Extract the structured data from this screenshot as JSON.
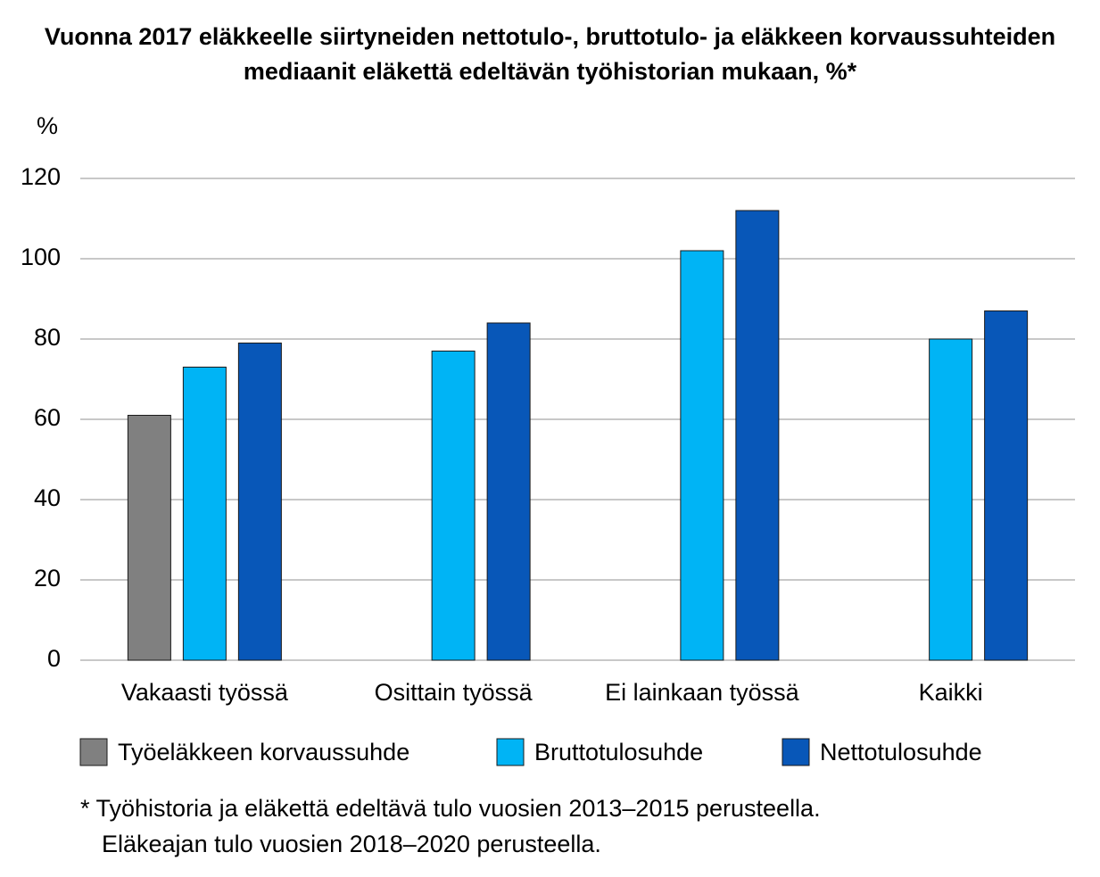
{
  "chart_data": {
    "type": "bar",
    "title": "Vuonna 2017 eläkkeelle siirtyneiden nettotulo-, bruttotulo- ja eläkkeen korvaussuhteiden mediaanit eläkettä edeltävän työhistorian mukaan, %*",
    "y_label": "%",
    "categories": [
      "Vakaasti työssä",
      "Osittain työssä",
      "Ei lainkaan työssä",
      "Kaikki"
    ],
    "series": [
      {
        "name": "Työeläkkeen korvaussuhde",
        "color": "#808080",
        "values": [
          61,
          null,
          null,
          null
        ]
      },
      {
        "name": "Bruttotulosuhde",
        "color": "#00b4f5",
        "values": [
          73,
          77,
          102,
          80
        ]
      },
      {
        "name": "Nettotulosuhde",
        "color": "#0857b8",
        "values": [
          79,
          84,
          112,
          87
        ]
      }
    ],
    "ylim": [
      0,
      120
    ],
    "yticks": [
      0,
      20,
      40,
      60,
      80,
      100,
      120
    ],
    "grid": true,
    "footnote": [
      "* Työhistoria ja eläkettä edeltävä tulo vuosien 2013–2015 perusteella.",
      "Eläkeajan tulo vuosien 2018–2020 perusteella."
    ]
  }
}
